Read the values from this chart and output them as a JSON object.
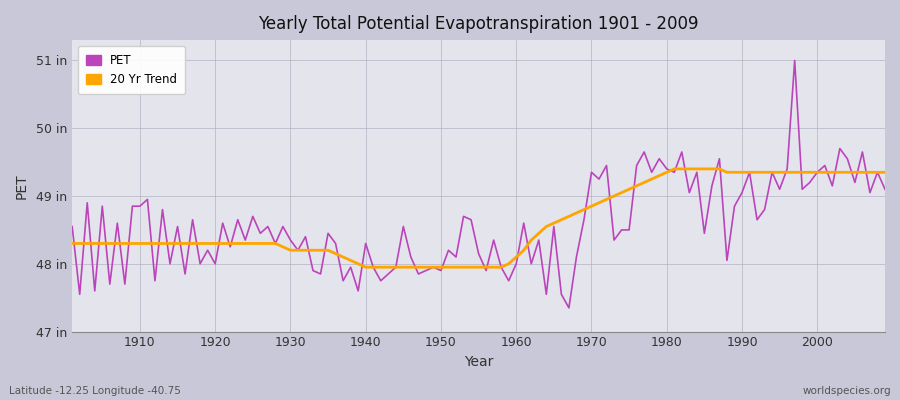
{
  "title": "Yearly Total Potential Evapotranspiration 1901 - 2009",
  "xlabel": "Year",
  "ylabel": "PET",
  "caption_left": "Latitude -12.25 Longitude -40.75",
  "caption_right": "worldspecies.org",
  "pet_color": "#bb44bb",
  "trend_color": "#FFA500",
  "fig_bg": "#c8c8d8",
  "plot_bg": "#e4e4ec",
  "ylim": [
    47.0,
    51.3
  ],
  "yticks": [
    47,
    48,
    49,
    50,
    51
  ],
  "ytick_labels": [
    "47 in",
    "48 in",
    "49 in",
    "50 in",
    "51 in"
  ],
  "years": [
    1901,
    1902,
    1903,
    1904,
    1905,
    1906,
    1907,
    1908,
    1909,
    1910,
    1911,
    1912,
    1913,
    1914,
    1915,
    1916,
    1917,
    1918,
    1919,
    1920,
    1921,
    1922,
    1923,
    1924,
    1925,
    1926,
    1927,
    1928,
    1929,
    1930,
    1931,
    1932,
    1933,
    1934,
    1935,
    1936,
    1937,
    1938,
    1939,
    1940,
    1941,
    1942,
    1943,
    1944,
    1945,
    1946,
    1947,
    1948,
    1949,
    1950,
    1951,
    1952,
    1953,
    1954,
    1955,
    1956,
    1957,
    1958,
    1959,
    1960,
    1961,
    1962,
    1963,
    1964,
    1965,
    1966,
    1967,
    1968,
    1969,
    1970,
    1971,
    1972,
    1973,
    1974,
    1975,
    1976,
    1977,
    1978,
    1979,
    1980,
    1981,
    1982,
    1983,
    1984,
    1985,
    1986,
    1987,
    1988,
    1989,
    1990,
    1991,
    1992,
    1993,
    1994,
    1995,
    1996,
    1997,
    1998,
    1999,
    2000,
    2001,
    2002,
    2003,
    2004,
    2005,
    2006,
    2007,
    2008,
    2009
  ],
  "pet_values": [
    48.55,
    47.55,
    48.9,
    47.6,
    48.85,
    47.7,
    48.6,
    47.7,
    48.85,
    48.85,
    48.95,
    47.75,
    48.8,
    48.0,
    48.55,
    47.85,
    48.65,
    48.0,
    48.2,
    48.0,
    48.6,
    48.25,
    48.65,
    48.35,
    48.7,
    48.45,
    48.55,
    48.3,
    48.55,
    48.35,
    48.2,
    48.4,
    47.9,
    47.85,
    48.45,
    48.3,
    47.75,
    47.95,
    47.6,
    48.3,
    47.95,
    47.75,
    47.85,
    47.95,
    48.55,
    48.1,
    47.85,
    47.9,
    47.95,
    47.9,
    48.2,
    48.1,
    48.7,
    48.65,
    48.15,
    47.9,
    48.35,
    47.95,
    47.75,
    48.0,
    48.6,
    48.0,
    48.35,
    47.55,
    48.55,
    47.55,
    47.35,
    48.1,
    48.65,
    49.35,
    49.25,
    49.45,
    48.35,
    48.5,
    48.5,
    49.45,
    49.65,
    49.35,
    49.55,
    49.4,
    49.35,
    49.65,
    49.05,
    49.35,
    48.45,
    49.15,
    49.55,
    48.05,
    48.85,
    49.05,
    49.35,
    48.65,
    48.8,
    49.35,
    49.1,
    49.4,
    51.0,
    49.1,
    49.2,
    49.35,
    49.45,
    49.15,
    49.7,
    49.55,
    49.2,
    49.65,
    49.05,
    49.35,
    49.1
  ],
  "trend_values": [
    48.3,
    48.3,
    48.3,
    48.3,
    48.3,
    48.3,
    48.3,
    48.3,
    48.3,
    48.3,
    48.3,
    48.3,
    48.3,
    48.3,
    48.3,
    48.3,
    48.3,
    48.3,
    48.3,
    48.3,
    48.3,
    48.3,
    48.3,
    48.3,
    48.3,
    48.3,
    48.3,
    48.3,
    48.25,
    48.2,
    48.2,
    48.2,
    48.2,
    48.2,
    48.2,
    48.15,
    48.1,
    48.05,
    48.0,
    47.95,
    47.95,
    47.95,
    47.95,
    47.95,
    47.95,
    47.95,
    47.95,
    47.95,
    47.95,
    47.95,
    47.95,
    47.95,
    47.95,
    47.95,
    47.95,
    47.95,
    47.95,
    47.95,
    48.0,
    48.1,
    48.2,
    48.35,
    48.45,
    48.55,
    48.6,
    48.65,
    48.7,
    48.75,
    48.8,
    48.85,
    48.9,
    48.95,
    49.0,
    49.05,
    49.1,
    49.15,
    49.2,
    49.25,
    49.3,
    49.35,
    49.4,
    49.4,
    49.4,
    49.4,
    49.4,
    49.4,
    49.4,
    49.35,
    49.35,
    49.35,
    49.35,
    49.35,
    49.35,
    49.35,
    49.35,
    49.35,
    49.35,
    49.35,
    49.35,
    49.35,
    49.35,
    49.35,
    49.35,
    49.35,
    49.35,
    49.35,
    49.35,
    49.35,
    49.35
  ]
}
